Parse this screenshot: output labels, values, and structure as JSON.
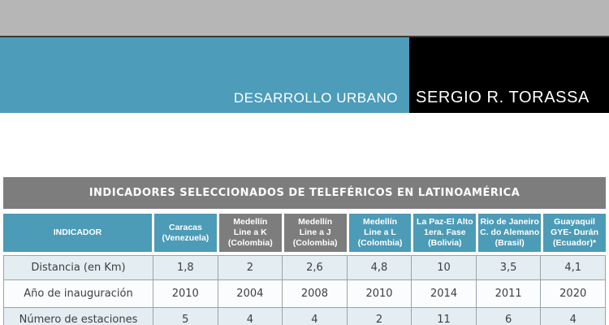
{
  "banner": {
    "left_title": "DESARROLLO URBANO",
    "right_title": "SERGIO R. TORASSA"
  },
  "colors": {
    "top_band_gray": "#b6b6b6",
    "banner_blue": "#4d9cba",
    "banner_black": "#000000",
    "table_title_gray": "#7d7d7d",
    "header_cell_blue": "#4c9bb7",
    "header_cell_gray": "#7d7d7d",
    "row_light_blue": "#e4edf2",
    "grid_border_gray": "#9aa3a9"
  },
  "table": {
    "title": "INDICADORES SELECCIONADOS DE TELEFÉRICOS EN LATINOAMÉRICA",
    "columns": [
      {
        "label": "INDICADOR",
        "variant": "blue"
      },
      {
        "label": "Caracas\n(Venezuela)",
        "variant": "blue"
      },
      {
        "label": "Medellín\nLine a K\n(Colombia)",
        "variant": "gray"
      },
      {
        "label": "Medellín\nLine a J\n(Colombia)",
        "variant": "gray"
      },
      {
        "label": "Medellín\nLine a L\n(Colombia)",
        "variant": "blue"
      },
      {
        "label": "La Paz-El Alto\n1era. Fase\n(Bolivia)",
        "variant": "blue"
      },
      {
        "label": "Rio de Janeiro\nC. do Alemano\n(Brasil)",
        "variant": "blue"
      },
      {
        "label": "Guayaquil\nGYE- Durán\n(Ecuador)*",
        "variant": "blue"
      }
    ],
    "rows": [
      {
        "label": "Distancia (en Km)",
        "values": [
          "1,8",
          "2",
          "2,6",
          "4,8",
          "10",
          "3,5",
          "4,1"
        ]
      },
      {
        "label": "Año de inauguración",
        "values": [
          "2010",
          "2004",
          "2008",
          "2010",
          "2014",
          "2011",
          "2020"
        ]
      },
      {
        "label": "Número de estaciones",
        "values": [
          "5",
          "4",
          "4",
          "2",
          "11",
          "6",
          "4"
        ]
      }
    ]
  }
}
